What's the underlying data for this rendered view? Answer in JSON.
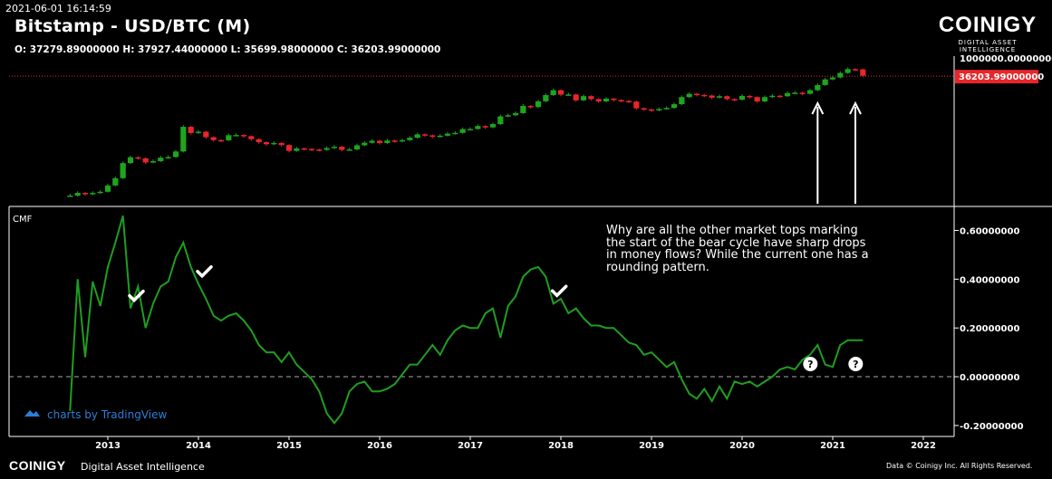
{
  "header": {
    "timestamp": "2021-06-01 16:14:59",
    "title": "Bitstamp - USD/BTC (M)",
    "ohlc": "O: 37279.89000000 H: 37927.44000000 L: 35699.98000000 C: 36203.99000000"
  },
  "brand": {
    "name": "COINIGY",
    "tagline": "DIGITAL ASSET INTELLIGENCE"
  },
  "footer": {
    "logo": "COINIGY",
    "tagline": "Digital Asset Intelligence",
    "copyright": "Data © Coinigy Inc.  All Rights Reserved."
  },
  "tradingview": "charts by TradingView",
  "annotation": "Why are all the other market tops marking the start of the bear cycle have sharp drops in money flows? While the current one has a rounding pattern.",
  "colors": {
    "up": "#1ea51e",
    "down": "#e8262a",
    "cmf_line": "#1f9e1f",
    "price_line": "#e8262a",
    "background": "#000000"
  },
  "chart_data": [
    {
      "type": "candlestick",
      "title": "Bitstamp - USD/BTC (M)",
      "scale": "log",
      "price_axis_labels": [
        "1000000.00000000"
      ],
      "last_price_label": "36203.99000000",
      "last_price": 36203.99,
      "x": [
        "2012-08",
        "2012-09",
        "2012-10",
        "2012-11",
        "2012-12",
        "2013-01",
        "2013-02",
        "2013-03",
        "2013-04",
        "2013-05",
        "2013-06",
        "2013-07",
        "2013-08",
        "2013-09",
        "2013-10",
        "2013-11",
        "2013-12",
        "2014-01",
        "2014-02",
        "2014-03",
        "2014-04",
        "2014-05",
        "2014-06",
        "2014-07",
        "2014-08",
        "2014-09",
        "2014-10",
        "2014-11",
        "2014-12",
        "2015-01",
        "2015-02",
        "2015-03",
        "2015-04",
        "2015-05",
        "2015-06",
        "2015-07",
        "2015-08",
        "2015-09",
        "2015-10",
        "2015-11",
        "2015-12",
        "2016-01",
        "2016-02",
        "2016-03",
        "2016-04",
        "2016-05",
        "2016-06",
        "2016-07",
        "2016-08",
        "2016-09",
        "2016-10",
        "2016-11",
        "2016-12",
        "2017-01",
        "2017-02",
        "2017-03",
        "2017-04",
        "2017-05",
        "2017-06",
        "2017-07",
        "2017-08",
        "2017-09",
        "2017-10",
        "2017-11",
        "2017-12",
        "2018-01",
        "2018-02",
        "2018-03",
        "2018-04",
        "2018-05",
        "2018-06",
        "2018-07",
        "2018-08",
        "2018-09",
        "2018-10",
        "2018-11",
        "2018-12",
        "2019-01",
        "2019-02",
        "2019-03",
        "2019-04",
        "2019-05",
        "2019-06",
        "2019-07",
        "2019-08",
        "2019-09",
        "2019-10",
        "2019-11",
        "2019-12",
        "2020-01",
        "2020-02",
        "2020-03",
        "2020-04",
        "2020-05",
        "2020-06",
        "2020-07",
        "2020-08",
        "2020-09",
        "2020-10",
        "2020-11",
        "2020-12",
        "2021-01",
        "2021-02",
        "2021-03",
        "2021-04",
        "2021-05"
      ],
      "close": [
        10,
        12,
        11,
        12,
        13,
        20,
        33,
        93,
        139,
        129,
        97,
        106,
        135,
        141,
        206,
        1120,
        732,
        800,
        550,
        450,
        445,
        630,
        640,
        590,
        480,
        390,
        340,
        370,
        320,
        215,
        255,
        245,
        235,
        230,
        260,
        285,
        230,
        237,
        315,
        375,
        430,
        368,
        437,
        416,
        448,
        530,
        670,
        624,
        575,
        609,
        700,
        740,
        960,
        965,
        1180,
        1080,
        1350,
        2300,
        2480,
        2870,
        4700,
        4340,
        6460,
        9900,
        13800,
        10200,
        10300,
        6900,
        9200,
        7500,
        6400,
        7730,
        7030,
        6630,
        6340,
        4000,
        3700,
        3450,
        3800,
        4100,
        5300,
        8600,
        10800,
        10000,
        9600,
        8300,
        9150,
        7550,
        7200,
        9350,
        8600,
        6400,
        8600,
        9450,
        9150,
        11350,
        11650,
        10780,
        13800,
        19700,
        29000,
        33100,
        45200,
        58800,
        57700,
        37300
      ],
      "annotations": [
        {
          "type": "arrow-up",
          "x": "2020-11"
        },
        {
          "type": "arrow-up",
          "x": "2021-04"
        }
      ]
    },
    {
      "type": "line",
      "title": "CMF",
      "y_ticks": [
        "0.60000000",
        "0.40000000",
        "0.20000000",
        "0.00000000",
        "-0.20000000"
      ],
      "x_ticks": [
        "2013",
        "2014",
        "2015",
        "2016",
        "2017",
        "2018",
        "2019",
        "2020",
        "2021",
        "2022"
      ],
      "ylim": [
        -0.23,
        0.65
      ],
      "zero_line": "dashed",
      "x": [
        "2012-08",
        "2012-09",
        "2012-10",
        "2012-11",
        "2012-12",
        "2013-01",
        "2013-02",
        "2013-03",
        "2013-04",
        "2013-05",
        "2013-06",
        "2013-07",
        "2013-08",
        "2013-09",
        "2013-10",
        "2013-11",
        "2013-12",
        "2014-01",
        "2014-02",
        "2014-03",
        "2014-04",
        "2014-05",
        "2014-06",
        "2014-07",
        "2014-08",
        "2014-09",
        "2014-10",
        "2014-11",
        "2014-12",
        "2015-01",
        "2015-02",
        "2015-03",
        "2015-04",
        "2015-05",
        "2015-06",
        "2015-07",
        "2015-08",
        "2015-09",
        "2015-10",
        "2015-11",
        "2015-12",
        "2016-01",
        "2016-02",
        "2016-03",
        "2016-04",
        "2016-05",
        "2016-06",
        "2016-07",
        "2016-08",
        "2016-09",
        "2016-10",
        "2016-11",
        "2016-12",
        "2017-01",
        "2017-02",
        "2017-03",
        "2017-04",
        "2017-05",
        "2017-06",
        "2017-07",
        "2017-08",
        "2017-09",
        "2017-10",
        "2017-11",
        "2017-12",
        "2018-01",
        "2018-02",
        "2018-03",
        "2018-04",
        "2018-05",
        "2018-06",
        "2018-07",
        "2018-08",
        "2018-09",
        "2018-10",
        "2018-11",
        "2018-12",
        "2019-01",
        "2019-02",
        "2019-03",
        "2019-04",
        "2019-05",
        "2019-06",
        "2019-07",
        "2019-08",
        "2019-09",
        "2019-10",
        "2019-11",
        "2019-12",
        "2020-01",
        "2020-02",
        "2020-03",
        "2020-04",
        "2020-05",
        "2020-06",
        "2020-07",
        "2020-08",
        "2020-09",
        "2020-10",
        "2020-11",
        "2020-12",
        "2021-01",
        "2021-02",
        "2021-03",
        "2021-04",
        "2021-05"
      ],
      "values": [
        -0.14,
        0.4,
        0.08,
        0.39,
        0.29,
        0.45,
        0.55,
        0.66,
        0.28,
        0.37,
        0.2,
        0.3,
        0.37,
        0.39,
        0.49,
        0.55,
        0.45,
        0.38,
        0.32,
        0.25,
        0.23,
        0.25,
        0.26,
        0.23,
        0.19,
        0.13,
        0.1,
        0.1,
        0.06,
        0.1,
        0.05,
        0.02,
        -0.01,
        -0.06,
        -0.15,
        -0.19,
        -0.15,
        -0.06,
        -0.03,
        -0.02,
        -0.06,
        -0.06,
        -0.05,
        -0.03,
        0.01,
        0.05,
        0.05,
        0.09,
        0.13,
        0.09,
        0.15,
        0.19,
        0.21,
        0.2,
        0.2,
        0.26,
        0.28,
        0.16,
        0.29,
        0.33,
        0.41,
        0.44,
        0.45,
        0.41,
        0.3,
        0.32,
        0.26,
        0.28,
        0.24,
        0.21,
        0.21,
        0.2,
        0.2,
        0.17,
        0.14,
        0.13,
        0.09,
        0.1,
        0.07,
        0.04,
        0.06,
        -0.01,
        -0.07,
        -0.09,
        -0.05,
        -0.1,
        -0.04,
        -0.09,
        -0.02,
        -0.03,
        -0.02,
        -0.04,
        -0.02,
        0.0,
        0.03,
        0.04,
        0.03,
        0.07,
        0.09,
        0.13,
        0.05,
        0.04,
        0.13,
        0.15,
        0.15,
        0.15
      ],
      "annotations": [
        {
          "type": "check",
          "x": "2013-04"
        },
        {
          "type": "check",
          "x": "2014-01"
        },
        {
          "type": "check",
          "x": "2017-12"
        },
        {
          "type": "question",
          "x": "2020-11"
        },
        {
          "type": "question",
          "x": "2021-05"
        }
      ]
    }
  ]
}
